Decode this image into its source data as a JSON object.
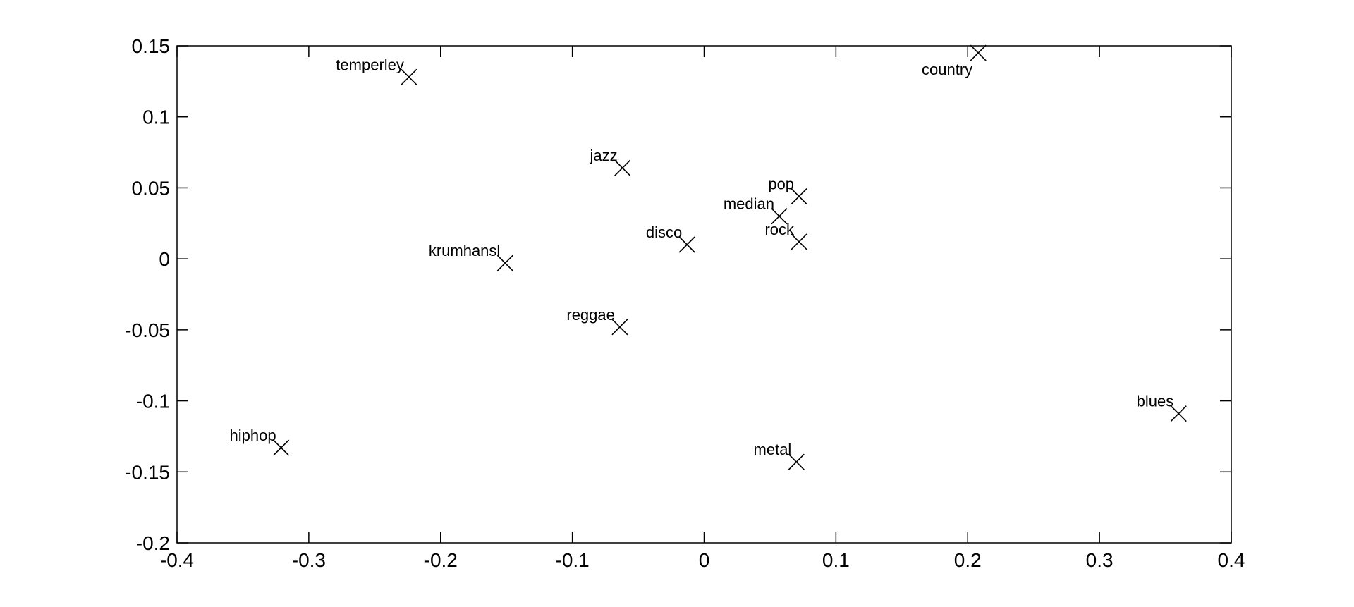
{
  "chart_data": {
    "type": "scatter",
    "title": "",
    "xlabel": "",
    "ylabel": "",
    "xlim": [
      -0.4,
      0.4
    ],
    "ylim": [
      -0.2,
      0.15
    ],
    "x_ticks": [
      -0.4,
      -0.3,
      -0.2,
      -0.1,
      0,
      0.1,
      0.2,
      0.3,
      0.4
    ],
    "x_tick_labels": [
      "-0.4",
      "-0.3",
      "-0.2",
      "-0.1",
      "0",
      "0.1",
      "0.2",
      "0.3",
      "0.4"
    ],
    "y_ticks": [
      0.15,
      0.1,
      0.05,
      0,
      -0.05,
      -0.1,
      -0.15,
      -0.2
    ],
    "y_tick_labels": [
      "0.15",
      "0.1",
      "0.05",
      "0",
      "-0.05",
      "-0.1",
      "-0.15",
      "-0.2"
    ],
    "grid": false,
    "legend": "none",
    "marker": "x",
    "color": "#000000",
    "points": [
      {
        "label": "temperley",
        "x": -0.224,
        "y": 0.128,
        "label_side": "left"
      },
      {
        "label": "country",
        "x": 0.208,
        "y": 0.145,
        "label_side": "below-left"
      },
      {
        "label": "jazz",
        "x": -0.062,
        "y": 0.064,
        "label_side": "left"
      },
      {
        "label": "pop",
        "x": 0.072,
        "y": 0.044,
        "label_side": "left"
      },
      {
        "label": "median",
        "x": 0.057,
        "y": 0.03,
        "label_side": "left"
      },
      {
        "label": "disco",
        "x": -0.013,
        "y": 0.01,
        "label_side": "left"
      },
      {
        "label": "rock",
        "x": 0.072,
        "y": 0.012,
        "label_side": "left"
      },
      {
        "label": "krumhansl",
        "x": -0.151,
        "y": -0.003,
        "label_side": "left"
      },
      {
        "label": "reggae",
        "x": -0.064,
        "y": -0.048,
        "label_side": "left"
      },
      {
        "label": "blues",
        "x": 0.36,
        "y": -0.109,
        "label_side": "left"
      },
      {
        "label": "hiphop",
        "x": -0.321,
        "y": -0.133,
        "label_side": "left"
      },
      {
        "label": "metal",
        "x": 0.07,
        "y": -0.143,
        "label_side": "left"
      }
    ]
  }
}
